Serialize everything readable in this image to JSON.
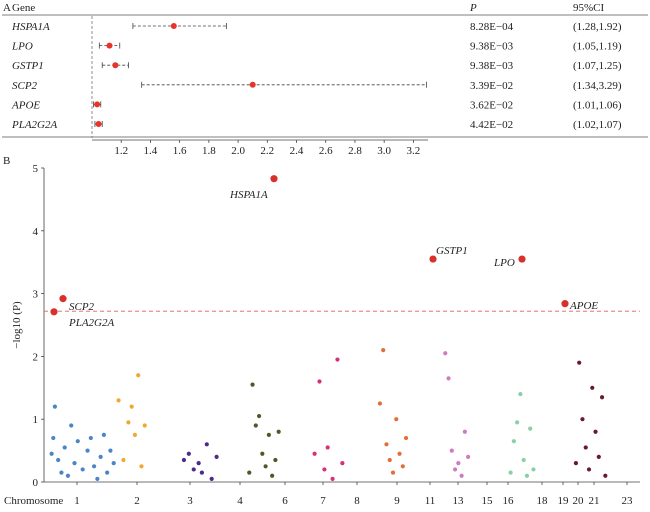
{
  "chart_data": [
    {
      "type": "forest",
      "panel_label": "A",
      "headers": {
        "gene": "Gene",
        "p": "P",
        "ci": "95%CI"
      },
      "xlim": [
        1.0,
        3.3
      ],
      "ticks": [
        1.2,
        1.4,
        1.6,
        1.8,
        2.0,
        2.2,
        2.4,
        2.6,
        2.8,
        3.0,
        3.2
      ],
      "rows": [
        {
          "gene": "HSPA1A",
          "or": 1.56,
          "lo": 1.28,
          "hi": 1.92,
          "p": "8.28E−04",
          "ci": "(1.28,1.92)",
          "color": "#222222"
        },
        {
          "gene": "LPO",
          "or": 1.12,
          "lo": 1.05,
          "hi": 1.19,
          "p": "9.38E−03",
          "ci": "(1.05,1.19)",
          "color": "#4a6fb5"
        },
        {
          "gene": "GSTP1",
          "or": 1.16,
          "lo": 1.07,
          "hi": 1.25,
          "p": "9.38E−03",
          "ci": "(1.07,1.25)",
          "color": "#e0703a"
        },
        {
          "gene": "SCP2",
          "or": 2.1,
          "lo": 1.34,
          "hi": 3.29,
          "p": "3.39E−02",
          "ci": "(1.34,3.29)",
          "color": "#d63b2a"
        },
        {
          "gene": "APOE",
          "or": 1.035,
          "lo": 1.01,
          "hi": 1.06,
          "p": "3.62E−02",
          "ci": "(1.01,1.06)",
          "color": "#222222"
        },
        {
          "gene": "PLA2G2A",
          "or": 1.045,
          "lo": 1.02,
          "hi": 1.07,
          "p": "4.42E−02",
          "ci": "(1.02,1.07)",
          "color": "#222222"
        }
      ]
    },
    {
      "type": "manhattan",
      "panel_label": "B",
      "ylabel": "−log10 (P)",
      "xlabel": "Chromosome",
      "ylim": [
        0,
        5
      ],
      "yticks": [
        0,
        1,
        2,
        3,
        4,
        5
      ],
      "threshold": 2.72,
      "chromosome_labels": [
        "1",
        "2",
        "3",
        "4",
        "6",
        "7",
        "8",
        "9",
        "11",
        "13",
        "15",
        "16",
        "18",
        "19",
        "20",
        "21",
        "23"
      ],
      "colors": [
        "#4a86c5",
        "#f0a830",
        "#4b2a8a",
        "#4a5a28",
        "#d6307a",
        "#e0703a",
        "#d07ac0",
        "#88d0a8",
        "#6a1a2a"
      ],
      "highlighted": [
        {
          "gene": "HSPA1A",
          "logp": 4.83
        },
        {
          "gene": "GSTP1",
          "logp": 3.55
        },
        {
          "gene": "LPO",
          "logp": 3.55
        },
        {
          "gene": "SCP2",
          "logp": 2.92
        },
        {
          "gene": "APOE",
          "logp": 2.84
        },
        {
          "gene": "PLA2G2A",
          "logp": 2.71
        }
      ],
      "points": [
        [
          [
            0.1,
            0.45
          ],
          [
            0.2,
            0.7
          ],
          [
            0.3,
            1.2
          ],
          [
            0.5,
            0.35
          ],
          [
            0.7,
            0.15
          ],
          [
            0.9,
            0.55
          ],
          [
            1.1,
            0.1
          ],
          [
            1.3,
            0.9
          ],
          [
            1.5,
            0.3
          ],
          [
            1.7,
            0.65
          ],
          [
            2.0,
            0.2
          ],
          [
            2.3,
            0.5
          ],
          [
            2.5,
            0.7
          ],
          [
            2.7,
            0.25
          ],
          [
            2.9,
            0.05
          ],
          [
            3.1,
            0.4
          ],
          [
            3.3,
            0.75
          ],
          [
            3.5,
            0.15
          ],
          [
            3.7,
            0.5
          ],
          [
            3.9,
            0.3
          ]
        ],
        [
          [
            0.2,
            1.3
          ],
          [
            0.5,
            0.35
          ],
          [
            0.8,
            0.95
          ],
          [
            1.0,
            1.2
          ],
          [
            1.2,
            0.75
          ],
          [
            1.4,
            1.7
          ],
          [
            1.6,
            0.25
          ],
          [
            1.8,
            0.9
          ]
        ],
        [
          [
            0.2,
            0.35
          ],
          [
            0.5,
            0.45
          ],
          [
            0.8,
            0.2
          ],
          [
            1.1,
            0.3
          ],
          [
            1.3,
            0.15
          ],
          [
            1.6,
            0.6
          ],
          [
            1.9,
            0.05
          ],
          [
            2.2,
            0.4
          ]
        ],
        [
          [
            0.2,
            0.15
          ],
          [
            0.4,
            1.55
          ],
          [
            0.6,
            0.9
          ],
          [
            0.8,
            1.05
          ],
          [
            1.0,
            0.45
          ],
          [
            1.2,
            0.25
          ],
          [
            1.4,
            0.75
          ],
          [
            1.6,
            0.1
          ],
          [
            1.8,
            0.35
          ],
          [
            2.0,
            0.8
          ]
        ],
        [
          [
            0.2,
            0.45
          ],
          [
            0.5,
            1.6
          ],
          [
            0.8,
            0.2
          ],
          [
            1.0,
            0.55
          ],
          [
            1.3,
            0.05
          ],
          [
            1.6,
            1.95
          ],
          [
            1.9,
            0.3
          ]
        ],
        [
          [
            0.2,
            1.25
          ],
          [
            0.4,
            2.1
          ],
          [
            0.6,
            0.6
          ],
          [
            0.8,
            0.35
          ],
          [
            1.0,
            0.15
          ],
          [
            1.2,
            1.0
          ],
          [
            1.4,
            0.45
          ],
          [
            1.6,
            0.25
          ],
          [
            1.8,
            0.7
          ]
        ],
        [
          [
            0.2,
            2.05
          ],
          [
            0.4,
            1.65
          ],
          [
            0.6,
            0.5
          ],
          [
            0.8,
            0.2
          ],
          [
            1.0,
            0.3
          ],
          [
            1.2,
            0.1
          ],
          [
            1.4,
            0.8
          ],
          [
            1.6,
            0.4
          ]
        ],
        [
          [
            0.2,
            0.15
          ],
          [
            0.4,
            0.65
          ],
          [
            0.6,
            0.95
          ],
          [
            0.8,
            1.4
          ],
          [
            1.0,
            0.35
          ],
          [
            1.2,
            0.1
          ],
          [
            1.4,
            0.85
          ],
          [
            1.6,
            0.2
          ]
        ],
        [
          [
            0.2,
            0.3
          ],
          [
            0.4,
            1.9
          ],
          [
            0.6,
            1.0
          ],
          [
            0.8,
            0.55
          ],
          [
            1.0,
            0.2
          ],
          [
            1.2,
            1.5
          ],
          [
            1.4,
            0.8
          ],
          [
            1.6,
            0.4
          ],
          [
            1.8,
            1.35
          ],
          [
            2.0,
            0.1
          ]
        ]
      ]
    }
  ]
}
